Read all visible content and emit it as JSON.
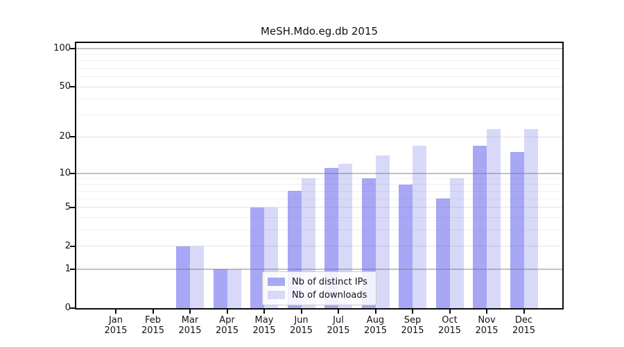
{
  "chart_data": {
    "type": "bar",
    "title": "MeSH.Mdo.eg.db 2015",
    "categories": [
      "Jan",
      "Feb",
      "Mar",
      "Apr",
      "May",
      "Jun",
      "Jul",
      "Aug",
      "Sep",
      "Oct",
      "Nov",
      "Dec"
    ],
    "category_year_label": "2015",
    "series": [
      {
        "name": "Nb of distinct IPs",
        "color": "#a7a7f6",
        "values": [
          0,
          0,
          2,
          1,
          5,
          7,
          11,
          9,
          8,
          6,
          17,
          15
        ]
      },
      {
        "name": "Nb of downloads",
        "color": "#d8d8f9",
        "values": [
          0,
          0,
          2,
          1,
          5,
          9,
          12,
          14,
          17,
          9,
          23,
          23
        ]
      }
    ],
    "xlabel": "",
    "ylabel": "",
    "yscale": "log1p",
    "ylim": [
      0,
      110
    ],
    "yticks": [
      0,
      1,
      2,
      5,
      10,
      20,
      50,
      100
    ],
    "ytick_labels": [
      "0",
      "1",
      "2",
      "5",
      "10",
      "20",
      "50",
      "100"
    ],
    "minor_gridlines": [
      3,
      4,
      6,
      7,
      8,
      9,
      30,
      40,
      60,
      70,
      80,
      90
    ],
    "emphasized_gridlines": [
      1,
      10,
      100
    ],
    "grid": true,
    "legend_position": "lower center inside plot",
    "bar_group": "paired side-by-side per month"
  },
  "style_colors": {
    "background": "#ffffff",
    "axis": "#0a0a0a",
    "grid_major_emphasized": "rgba(120,120,120,0.45)",
    "grid_major": "rgba(120,120,120,0.22)",
    "grid_minor": "rgba(120,120,120,0.12)",
    "legend_border": "#cbcbcb"
  }
}
